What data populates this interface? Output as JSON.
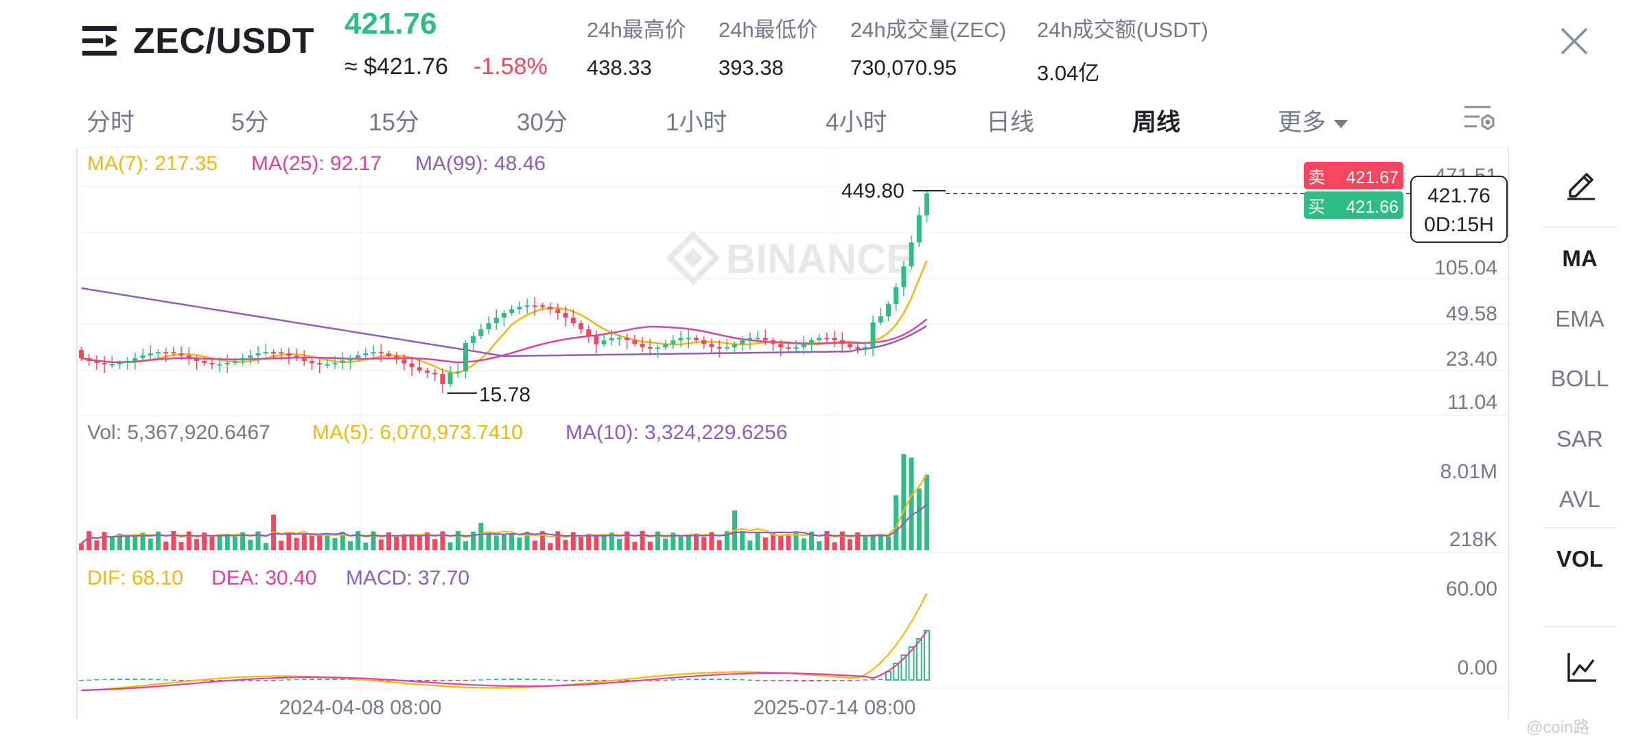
{
  "header": {
    "pair": "ZEC/USDT",
    "last_price": "421.76",
    "usd_price": "≈ $421.76",
    "change": "-1.58%",
    "stats": [
      {
        "label": "24h最高价",
        "value": "438.33"
      },
      {
        "label": "24h最低价",
        "value": "393.38"
      },
      {
        "label": "24h成交量(ZEC)",
        "value": "730,070.95"
      },
      {
        "label": "24h成交额(USDT)",
        "value": "3.04亿"
      }
    ]
  },
  "intervals": [
    "分时",
    "5分",
    "15分",
    "30分",
    "1小时",
    "4小时",
    "日线",
    "周线",
    "更多"
  ],
  "active_interval": "周线",
  "indicators": [
    "MA",
    "EMA",
    "BOLL",
    "SAR",
    "AVL",
    "VOL"
  ],
  "active_indicators": [
    "MA",
    "VOL"
  ],
  "watermark": "BINANCE",
  "corner_watermark": "@coin路",
  "colors": {
    "up": "#2ebd85",
    "down": "#f6465d",
    "ma7": "#f0b90b",
    "ma25": "#e040a0",
    "ma99": "#8e5db8"
  },
  "chart_data": [
    {
      "type": "candlestick",
      "panel": "price",
      "scale": "log",
      "legend": {
        "ma7": "MA(7): 217.35",
        "ma25": "MA(25): 92.17",
        "ma99": "MA(99): 48.46"
      },
      "y_ticks": [
        "471.51",
        "105.04",
        "49.58",
        "23.40",
        "11.04"
      ],
      "x_ticks": [
        "2024-04-08 08:00",
        "2025-07-14 08:00"
      ],
      "annotations": {
        "high": "449.80",
        "low": "15.78"
      },
      "order_book": {
        "sell_label": "卖",
        "sell": "421.67",
        "buy_label": "买",
        "buy": "421.66"
      },
      "current_price": "421.76",
      "countdown": "0D:15H"
    },
    {
      "type": "bar",
      "panel": "volume",
      "legend": {
        "vol": "Vol: 5,367,920.6467",
        "ma5": "MA(5): 6,070,973.7410",
        "ma10": "MA(10): 3,324,229.6256"
      },
      "y_ticks": [
        "8.01M",
        "218K"
      ]
    },
    {
      "type": "bar",
      "panel": "macd",
      "legend": {
        "dif": "DIF: 68.10",
        "dea": "DEA: 30.40",
        "macd": "MACD: 37.70"
      },
      "y_ticks": [
        "60.00",
        "0.00"
      ]
    }
  ]
}
